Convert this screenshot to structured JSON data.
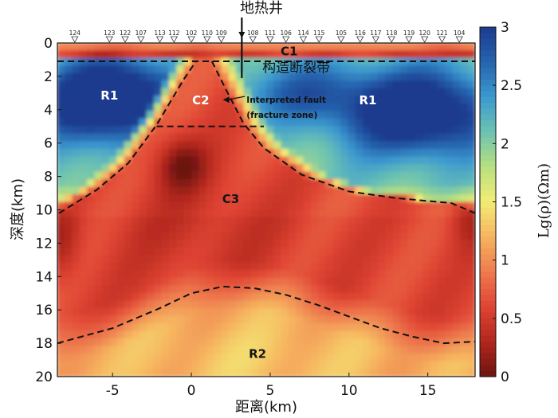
{
  "chart_data": {
    "type": "heatmap",
    "title": "",
    "top_annotation": "地热井",
    "xlabel": "距离(km)",
    "ylabel": "深度(km)",
    "colorbar_label": "Lg(ρ)(Ωm)",
    "xlim": [
      -8.5,
      18
    ],
    "ylim": [
      20,
      0
    ],
    "vlim": [
      0,
      3
    ],
    "x_ticks": [
      {
        "v": -5,
        "label": "-5"
      },
      {
        "v": 0,
        "label": "0"
      },
      {
        "v": 5,
        "label": "5"
      },
      {
        "v": 10,
        "label": "10"
      },
      {
        "v": 15,
        "label": "15"
      }
    ],
    "y_ticks": [
      {
        "v": 0,
        "label": "0"
      },
      {
        "v": 2,
        "label": "2"
      },
      {
        "v": 4,
        "label": "4"
      },
      {
        "v": 6,
        "label": "6"
      },
      {
        "v": 8,
        "label": "8"
      },
      {
        "v": 10,
        "label": "10"
      },
      {
        "v": 12,
        "label": "12"
      },
      {
        "v": 14,
        "label": "14"
      },
      {
        "v": 16,
        "label": "16"
      },
      {
        "v": 18,
        "label": "18"
      },
      {
        "v": 20,
        "label": "20"
      }
    ],
    "colorbar_ticks": [
      {
        "v": 0,
        "label": "0"
      },
      {
        "v": 0.5,
        "label": "0.5"
      },
      {
        "v": 1,
        "label": "1"
      },
      {
        "v": 1.5,
        "label": "1.5"
      },
      {
        "v": 2,
        "label": "2"
      },
      {
        "v": 2.5,
        "label": "2.5"
      },
      {
        "v": 3,
        "label": "3"
      }
    ],
    "colorscale": [
      "#6b1410",
      "#b2271d",
      "#df4433",
      "#ee7b4f",
      "#f6b45f",
      "#f3ec76",
      "#b7e07f",
      "#6cc2b2",
      "#3c99cf",
      "#2563ae",
      "#1c3b8e"
    ],
    "stations": [
      {
        "id": "124",
        "x": -7.4
      },
      {
        "id": "123",
        "x": -5.2
      },
      {
        "id": "122",
        "x": -4.2
      },
      {
        "id": "107",
        "x": -3.2
      },
      {
        "id": "113",
        "x": -2.0
      },
      {
        "id": "112",
        "x": -1.1
      },
      {
        "id": "102",
        "x": 0.0
      },
      {
        "id": "110",
        "x": 1.0
      },
      {
        "id": "109",
        "x": 1.9
      },
      {
        "id": "108",
        "x": 3.9
      },
      {
        "id": "111",
        "x": 5.0
      },
      {
        "id": "106",
        "x": 6.0
      },
      {
        "id": "114",
        "x": 7.1
      },
      {
        "id": "115",
        "x": 8.1
      },
      {
        "id": "105",
        "x": 9.5
      },
      {
        "id": "116",
        "x": 10.7
      },
      {
        "id": "117",
        "x": 11.7
      },
      {
        "id": "118",
        "x": 12.7
      },
      {
        "id": "119",
        "x": 13.8
      },
      {
        "id": "120",
        "x": 14.8
      },
      {
        "id": "121",
        "x": 15.9
      },
      {
        "id": "104",
        "x": 17.0
      }
    ],
    "region_labels": [
      {
        "text": "C1",
        "x": 6.2,
        "y": 0.45
      },
      {
        "text": "R1",
        "x": -5.2,
        "y": 3.1
      },
      {
        "text": "R1",
        "x": 11.2,
        "y": 3.4
      },
      {
        "text": "C2",
        "x": 0.6,
        "y": 3.4
      },
      {
        "text": "C3",
        "x": 2.5,
        "y": 9.3
      },
      {
        "text": "R2",
        "x": 4.2,
        "y": 18.6
      }
    ],
    "annotations": [
      {
        "text": "构造断裂带",
        "x": 4.5,
        "y": 1.4
      },
      {
        "text": "Interpreted fault",
        "x": 3.5,
        "y": 3.4
      },
      {
        "text": "(fracture zone)",
        "x": 3.5,
        "y": 4.3
      }
    ],
    "well": {
      "x": 3.2,
      "depth_km": 2.1
    },
    "boundaries": [
      {
        "name": "C1-base",
        "points": [
          [
            -8.5,
            1.1
          ],
          [
            18,
            1.1
          ]
        ]
      },
      {
        "name": "C2-left",
        "points": [
          [
            -8.4,
            10.2
          ],
          [
            -6,
            8.8
          ],
          [
            -4,
            7.2
          ],
          [
            -2.2,
            4.9
          ],
          [
            -0.5,
            2.2
          ],
          [
            0.3,
            1.1
          ]
        ]
      },
      {
        "name": "C2-right",
        "points": [
          [
            1.3,
            1.1
          ],
          [
            2.2,
            2.8
          ],
          [
            3.3,
            4.8
          ],
          [
            4.6,
            6.3
          ],
          [
            7,
            7.9
          ],
          [
            10,
            8.9
          ],
          [
            13,
            9.3
          ],
          [
            16.5,
            9.6
          ],
          [
            18,
            10.2
          ]
        ]
      },
      {
        "name": "C2-base",
        "points": [
          [
            -2.2,
            5
          ],
          [
            4.6,
            5
          ]
        ]
      },
      {
        "name": "R2-top",
        "points": [
          [
            -8.5,
            18
          ],
          [
            -5,
            17.1
          ],
          [
            -2,
            15.9
          ],
          [
            0,
            15
          ],
          [
            2,
            14.6
          ],
          [
            4,
            14.7
          ],
          [
            6,
            15.1
          ],
          [
            8,
            15.7
          ],
          [
            10,
            16.4
          ],
          [
            12,
            17.1
          ],
          [
            14,
            17.6
          ],
          [
            16,
            18
          ],
          [
            18,
            17.9
          ]
        ]
      }
    ]
  }
}
